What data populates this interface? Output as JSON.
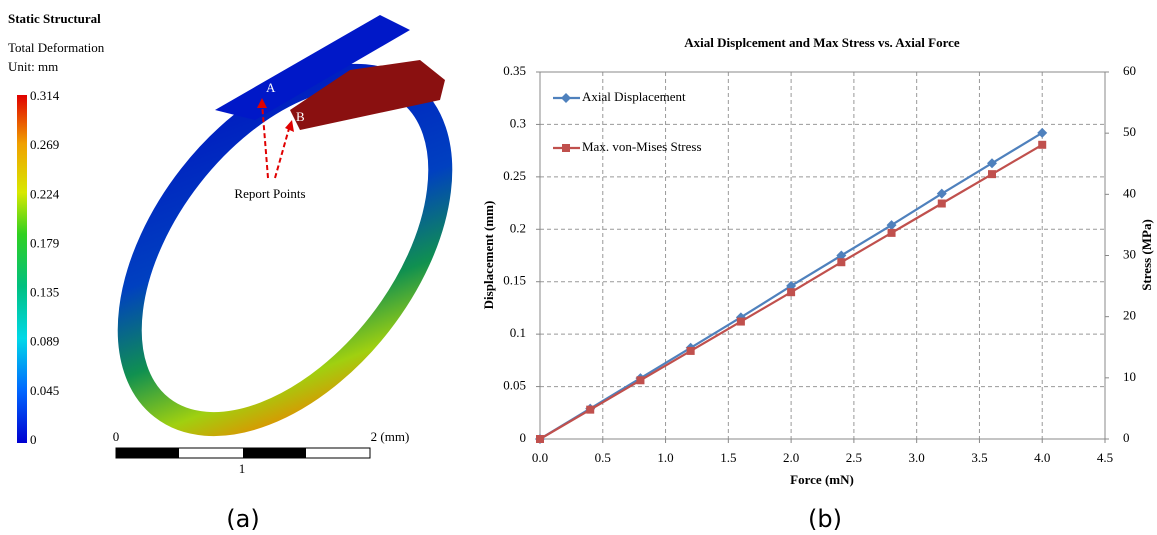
{
  "panel_a": {
    "title": "Static Structural",
    "subtitle": "Total Deformation",
    "unit": "Unit: mm",
    "colorbar_ticks": [
      0.314,
      0.269,
      0.224,
      0.179,
      0.135,
      0.089,
      0.045,
      0
    ],
    "point_a": "A",
    "point_b": "B",
    "annotation": "Report Points",
    "scale_start": "0",
    "scale_end": "2 (mm)",
    "scale_mid": "1",
    "caption": "(a)"
  },
  "chart_data": {
    "type": "line",
    "title": "Axial Displcement and Max Stress vs. Axial Force",
    "xlabel": "Force (mN)",
    "ylabel": "Displacement (mm)",
    "y2label": "Stress (MPa)",
    "x": [
      0,
      0.4,
      0.8,
      1.2,
      1.6,
      2.0,
      2.4,
      2.8,
      3.2,
      3.6,
      4.0
    ],
    "series": [
      {
        "name": "Axial Displacement",
        "color": "#4f81bd",
        "marker": "diamond",
        "values": [
          0,
          0.029,
          0.058,
          0.087,
          0.116,
          0.146,
          0.175,
          0.204,
          0.234,
          0.263,
          0.292
        ]
      },
      {
        "name": "Max. von-Mises Stress",
        "color": "#c0504d",
        "marker": "square",
        "axis": "y2",
        "values": [
          0,
          4.8,
          9.6,
          14.4,
          19.2,
          24.0,
          28.9,
          33.7,
          38.5,
          43.3,
          48.1
        ]
      }
    ],
    "xlim": [
      0,
      4.5
    ],
    "xticks": [
      {
        "value": 0,
        "label": "0.0"
      },
      {
        "value": 0.5,
        "label": "0.5"
      },
      {
        "value": 1,
        "label": "1.0"
      },
      {
        "value": 1.5,
        "label": "1.5"
      },
      {
        "value": 2,
        "label": "2.0"
      },
      {
        "value": 2.5,
        "label": "2.5"
      },
      {
        "value": 3,
        "label": "3.0"
      },
      {
        "value": 3.5,
        "label": "3.5"
      },
      {
        "value": 4,
        "label": "4.0"
      },
      {
        "value": 4.5,
        "label": "4.5"
      }
    ],
    "ylim": [
      0,
      0.35
    ],
    "yticks": [
      0,
      0.05,
      0.1,
      0.15,
      0.2,
      0.25,
      0.3,
      0.35
    ],
    "y2lim": [
      0,
      60
    ],
    "y2ticks": [
      0,
      10,
      20,
      30,
      40,
      50,
      60
    ],
    "grid": true,
    "legend": "upper left"
  },
  "caption_b": "(b)"
}
